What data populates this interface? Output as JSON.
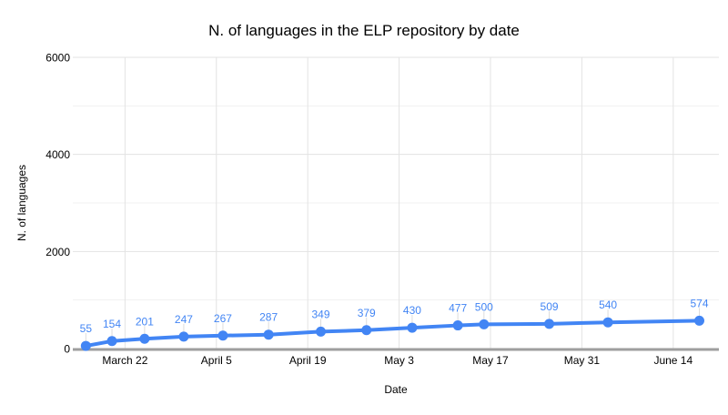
{
  "chart_data": {
    "type": "line",
    "title": "N. of languages in the ELP repository by date",
    "xlabel": "Date",
    "ylabel": "N. of languages",
    "legend_position": "none",
    "grid": "on",
    "ylim": [
      0,
      6000
    ],
    "y_ticks": [
      0,
      2000,
      4000,
      6000
    ],
    "y_tick_labels": [
      "0",
      "2000",
      "4000",
      "6000"
    ],
    "y_minor_gridlines": [
      1000,
      3000,
      5000
    ],
    "x_tick_labels": [
      "March 22",
      "April 5",
      "April 19",
      "May 3",
      "May 17",
      "May 31",
      "June 14"
    ],
    "x_tick_days": [
      21,
      35,
      49,
      63,
      77,
      91,
      105
    ],
    "x_domain_days": [
      13,
      112
    ],
    "points": [
      {
        "value": 55,
        "label": "55",
        "date_estimated": "March 16",
        "day": 15
      },
      {
        "value": 154,
        "label": "154",
        "date_estimated": "March 20",
        "day": 19
      },
      {
        "value": 201,
        "label": "201",
        "date_estimated": "March 25",
        "day": 24
      },
      {
        "value": 247,
        "label": "247",
        "date_estimated": "March 31",
        "day": 30
      },
      {
        "value": 267,
        "label": "267",
        "date_estimated": "April 6",
        "day": 36
      },
      {
        "value": 287,
        "label": "287",
        "date_estimated": "April 13",
        "day": 43
      },
      {
        "value": 349,
        "label": "349",
        "date_estimated": "April 21",
        "day": 51
      },
      {
        "value": 379,
        "label": "379",
        "date_estimated": "April 28",
        "day": 58
      },
      {
        "value": 430,
        "label": "430",
        "date_estimated": "May 5",
        "day": 65
      },
      {
        "value": 477,
        "label": "477",
        "date_estimated": "May 12",
        "day": 72
      },
      {
        "value": 500,
        "label": "500",
        "date_estimated": "May 16",
        "day": 76
      },
      {
        "value": 509,
        "label": "509",
        "date_estimated": "May 26",
        "day": 86
      },
      {
        "value": 540,
        "label": "540",
        "date_estimated": "June 4",
        "day": 95
      },
      {
        "value": 574,
        "label": "574",
        "date_estimated": "June 18",
        "day": 109
      }
    ],
    "colors": {
      "series": "#4285f4",
      "data_label": "#4285f4",
      "axis_line": "#9e9e9e",
      "major_gridline": "#e3e3e3",
      "minor_gridline": "#f1f1f1",
      "vertical_gridline": "#e3e3e3",
      "label_stem": "#dcdcdc",
      "text": "#000000",
      "background": "#ffffff"
    }
  }
}
